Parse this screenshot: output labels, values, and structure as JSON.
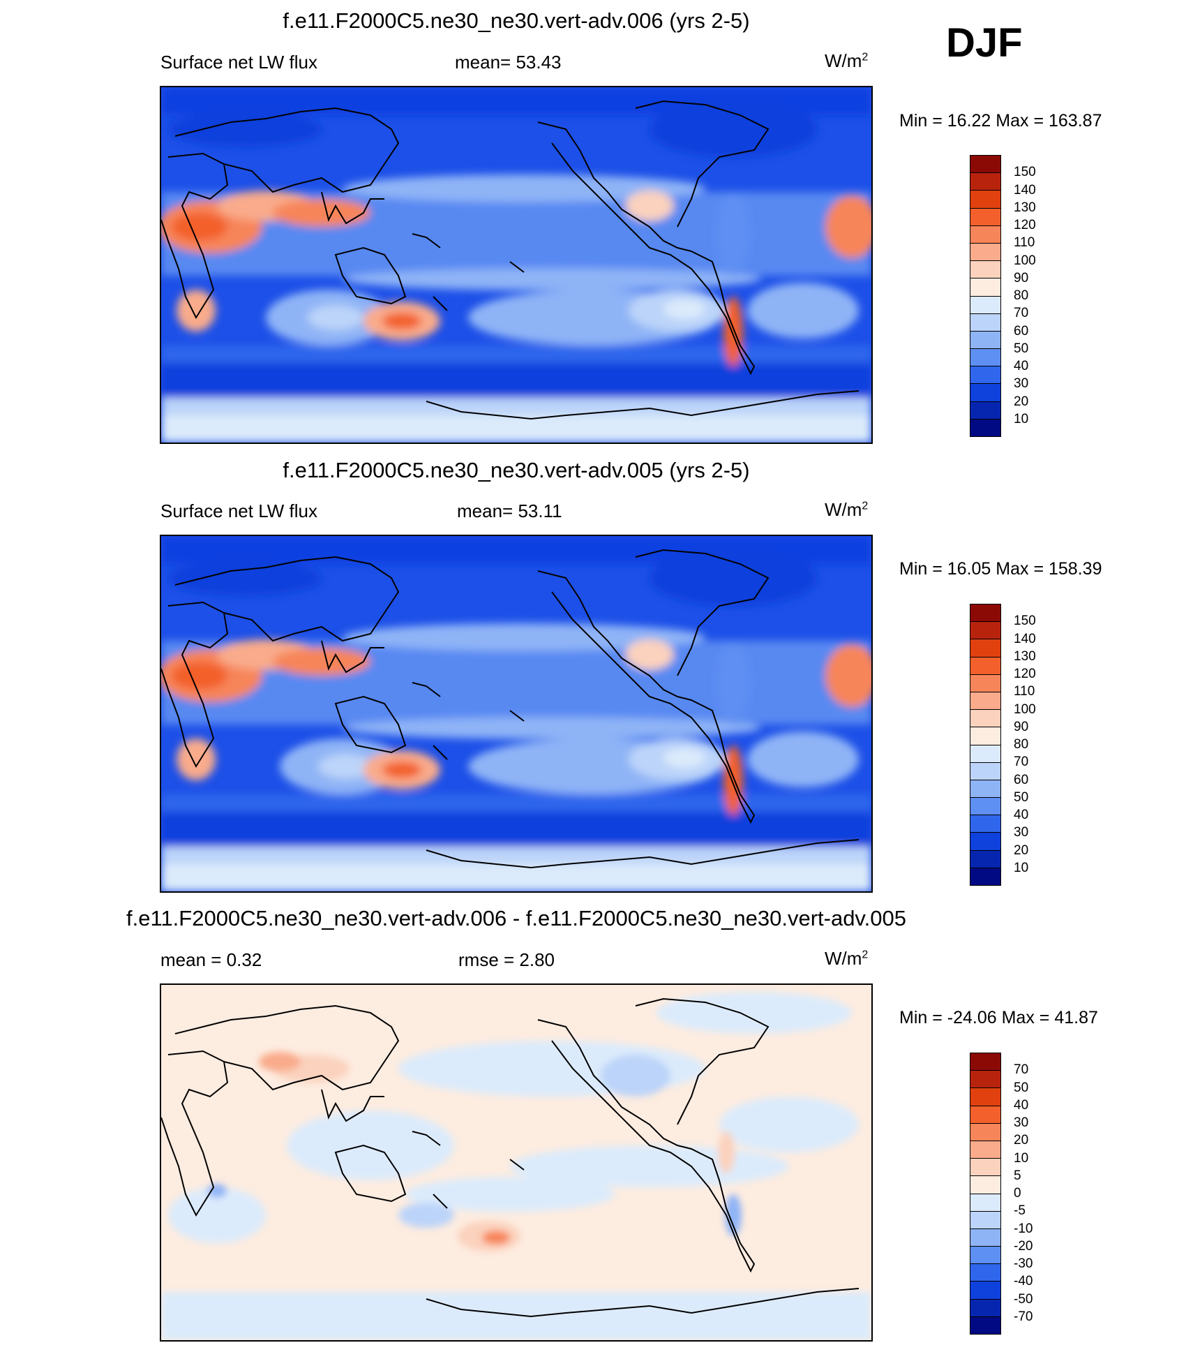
{
  "season": "DJF",
  "panels": [
    {
      "title": "f.e11.F2000C5.ne30_ne30.vert-adv.006 (yrs 2-5)",
      "left": "Surface net LW flux",
      "middle": "mean=  53.43",
      "unit_base": "W/m",
      "unit_exp": "2",
      "minmax": "Min =  16.22 Max = 163.87",
      "colorbar": {
        "labels": [
          "150",
          "140",
          "130",
          "120",
          "110",
          "100",
          "90",
          "80",
          "70",
          "60",
          "50",
          "40",
          "30",
          "20",
          "10"
        ],
        "colors": [
          "#8b0a05",
          "#b8230e",
          "#e0410f",
          "#f3602c",
          "#f7855a",
          "#f9ab8b",
          "#fbd2bd",
          "#fdece0",
          "#dcebfb",
          "#bcd4f9",
          "#8fb4f6",
          "#5e8ff2",
          "#2f66ec",
          "#0f41dc",
          "#0626b0",
          "#010a82"
        ]
      }
    },
    {
      "title": "f.e11.F2000C5.ne30_ne30.vert-adv.005 (yrs 2-5)",
      "left": "Surface net LW flux",
      "middle": "mean=  53.11",
      "unit_base": "W/m",
      "unit_exp": "2",
      "minmax": "Min =  16.05 Max = 158.39",
      "colorbar": {
        "labels": [
          "150",
          "140",
          "130",
          "120",
          "110",
          "100",
          "90",
          "80",
          "70",
          "60",
          "50",
          "40",
          "30",
          "20",
          "10"
        ],
        "colors": [
          "#8b0a05",
          "#b8230e",
          "#e0410f",
          "#f3602c",
          "#f7855a",
          "#f9ab8b",
          "#fbd2bd",
          "#fdece0",
          "#dcebfb",
          "#bcd4f9",
          "#8fb4f6",
          "#5e8ff2",
          "#2f66ec",
          "#0f41dc",
          "#0626b0",
          "#010a82"
        ]
      }
    },
    {
      "title": "f.e11.F2000C5.ne30_ne30.vert-adv.006 - f.e11.F2000C5.ne30_ne30.vert-adv.005",
      "left": "mean =   0.32",
      "middle": "rmse =   2.80",
      "unit_base": "W/m",
      "unit_exp": "2",
      "minmax": "Min = -24.06 Max =  41.87",
      "colorbar": {
        "labels": [
          "70",
          "50",
          "40",
          "30",
          "20",
          "10",
          "5",
          "0",
          "-5",
          "-10",
          "-20",
          "-30",
          "-40",
          "-50",
          "-70"
        ],
        "colors": [
          "#8b0a05",
          "#b8230e",
          "#e0410f",
          "#f3602c",
          "#f7855a",
          "#f9ab8b",
          "#fbd2bd",
          "#fdece0",
          "#dcebfb",
          "#bcd4f9",
          "#8fb4f6",
          "#5e8ff2",
          "#2f66ec",
          "#0f41dc",
          "#0626b0",
          "#010a82"
        ]
      }
    }
  ]
}
